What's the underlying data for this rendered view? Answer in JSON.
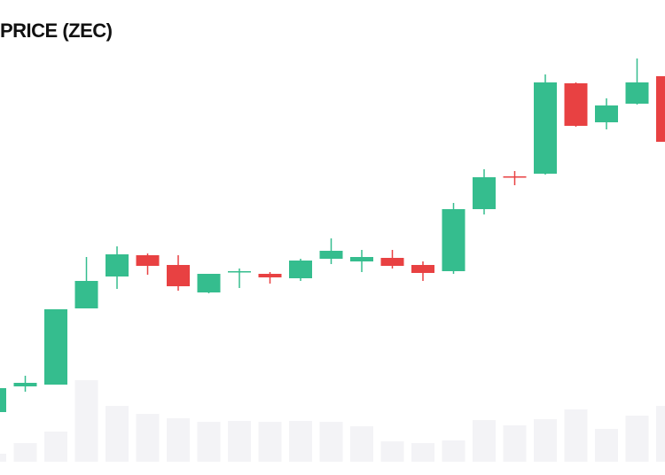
{
  "chart_data": {
    "type": "candlestick",
    "title": "PRICE (ZEC)",
    "categories": [
      null,
      null,
      null,
      null,
      null,
      null,
      null,
      null,
      null,
      null,
      null,
      null,
      null,
      null,
      null,
      null,
      null,
      null,
      null,
      null,
      null,
      null,
      null
    ],
    "open": [
      71,
      100,
      102,
      188,
      224,
      248,
      237,
      206,
      230,
      227,
      222,
      244,
      241,
      245,
      237,
      230,
      300,
      337,
      340,
      442,
      398,
      419,
      450
    ],
    "high": [
      100,
      112,
      187,
      246,
      258,
      250,
      248,
      227,
      233,
      229,
      244,
      267,
      254,
      254,
      241,
      307,
      345,
      343,
      452,
      443,
      425,
      470,
      452
    ],
    "low": [
      70,
      94,
      102,
      188,
      210,
      226,
      208,
      205,
      211,
      216,
      219,
      238,
      229,
      233,
      219,
      227,
      294,
      327,
      339,
      393,
      390,
      418,
      371
    ],
    "close": [
      98,
      104,
      187,
      219,
      249,
      236,
      213,
      227,
      230,
      223,
      242,
      253,
      246,
      236,
      228,
      300,
      336,
      336,
      443,
      394,
      417,
      443,
      376
    ],
    "volume": [
      9,
      21,
      34,
      92,
      63,
      54,
      49,
      45,
      46,
      45,
      46,
      45,
      40,
      23,
      21,
      24,
      47,
      41,
      48,
      59,
      37,
      52,
      63
    ],
    "ylim": [
      0,
      536
    ],
    "volume_ylim": [
      0,
      536
    ],
    "up_color": "#35bd8e",
    "down_color": "#e84142",
    "volume_color": "#f3f3f6"
  }
}
